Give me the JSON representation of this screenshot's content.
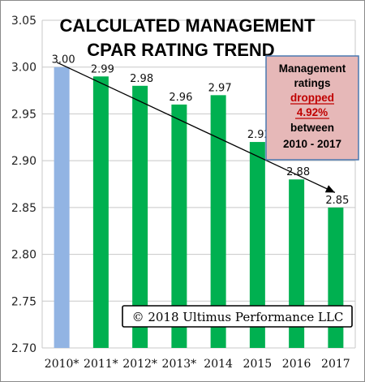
{
  "chart_data": {
    "type": "bar",
    "title_line1": "CALCULATED MANAGEMENT",
    "title_line2": "CPAR RATING TREND",
    "categories": [
      "2010*",
      "2011*",
      "2012*",
      "2013*",
      "2014",
      "2015",
      "2016",
      "2017"
    ],
    "values": [
      3.0,
      2.99,
      2.98,
      2.96,
      2.97,
      2.92,
      2.88,
      2.85
    ],
    "data_labels": [
      "3.00",
      "2.99",
      "2.98",
      "2.96",
      "2.97",
      "2.92",
      "2.88",
      "2.85"
    ],
    "bar_colors": [
      "#92b4e3",
      "#00b050",
      "#00b050",
      "#00b050",
      "#00b050",
      "#00b050",
      "#00b050",
      "#00b050"
    ],
    "ylim": [
      2.7,
      3.05
    ],
    "yticks": [
      "3.05",
      "3.00",
      "2.95",
      "2.90",
      "2.85",
      "2.80",
      "2.75",
      "2.70"
    ],
    "grid": true,
    "trend_arrow": {
      "from_category": "2010*",
      "from_value": 3.005,
      "to_category": "2017",
      "to_value": 2.866
    },
    "annotation": {
      "line1": "Management",
      "line2": "ratings",
      "line3": "dropped",
      "line4": "4.92%",
      "line5": "between",
      "line6": "2010 - 2017",
      "placement": "top-right"
    },
    "copyright": "© 2018 Ultimus Performance LLC"
  }
}
